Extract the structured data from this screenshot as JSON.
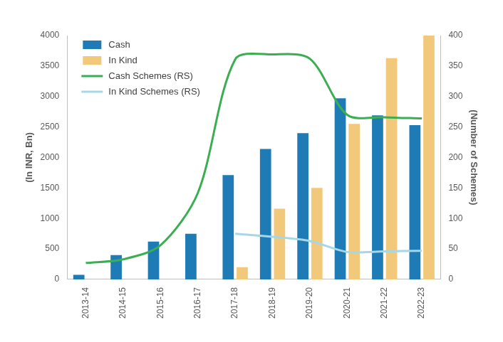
{
  "chart_data": {
    "type": "bar",
    "categories": [
      "2013-14",
      "2014-15",
      "2015-16",
      "2016-17",
      "2017-18",
      "2018-19",
      "2019-20",
      "2020-21",
      "2021-22",
      "2022-23"
    ],
    "y_label": "(In INR, Bn)",
    "y2_label": "(Number of Schemes)",
    "ylim": [
      0,
      4000
    ],
    "yticks": [
      0,
      500,
      1000,
      1500,
      2000,
      2500,
      3000,
      3500,
      4000
    ],
    "y2lim": [
      0,
      400
    ],
    "y2ticks": [
      0,
      50,
      100,
      150,
      200,
      250,
      300,
      350,
      400
    ],
    "grid": false,
    "legend": "top-left",
    "series": [
      {
        "name": "Cash",
        "type": "bar",
        "color": "#1f7bb6",
        "values": [
          74,
          400,
          620,
          750,
          1710,
          2140,
          2400,
          2970,
          2690,
          2530
        ]
      },
      {
        "name": "In Kind",
        "type": "bar",
        "color": "#f2c97a",
        "values": [
          null,
          null,
          null,
          null,
          200,
          1160,
          1500,
          2550,
          3630,
          4000
        ]
      },
      {
        "name": "Cash Schemes (RS)",
        "type": "line",
        "axis": "y2",
        "color": "#3cae52",
        "values": [
          27,
          33,
          56,
          142,
          361,
          369,
          362,
          270,
          266,
          264
        ]
      },
      {
        "name": "In Kind Schemes (RS)",
        "type": "line",
        "axis": "y2",
        "color": "#a6d7e6",
        "values": [
          null,
          null,
          null,
          null,
          75,
          70,
          63,
          45,
          46,
          47
        ]
      }
    ]
  }
}
